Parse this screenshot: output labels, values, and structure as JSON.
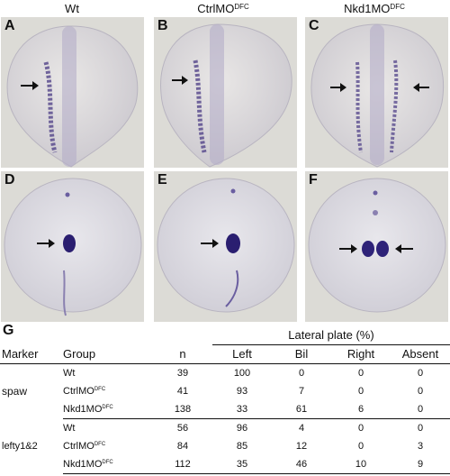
{
  "columns": [
    {
      "main": "Wt",
      "sup": ""
    },
    {
      "main": "CtrlMO",
      "sup": "DFC"
    },
    {
      "main": "Nkd1MO",
      "sup": "DFC"
    }
  ],
  "panel_labels": [
    "A",
    "B",
    "C",
    "D",
    "E",
    "F"
  ],
  "table": {
    "label": "G",
    "header_group": "Lateral plate (%)",
    "headers": {
      "marker": "Marker",
      "group": "Group",
      "n": "n",
      "left": "Left",
      "bil": "Bil",
      "right": "Right",
      "absent": "Absent"
    },
    "markers": [
      "spaw",
      "lefty1&2"
    ],
    "rows": [
      {
        "group": "Wt",
        "sup": "",
        "n": "39",
        "left": "100",
        "bil": "0",
        "right": "0",
        "absent": "0"
      },
      {
        "group": "CtrlMO",
        "sup": "DFC",
        "n": "41",
        "left": "93",
        "bil": "7",
        "right": "0",
        "absent": "0"
      },
      {
        "group": "Nkd1MO",
        "sup": "DFC",
        "n": "138",
        "left": "33",
        "bil": "61",
        "right": "6",
        "absent": "0"
      },
      {
        "group": "Wt",
        "sup": "",
        "n": "56",
        "left": "96",
        "bil": "4",
        "right": "0",
        "absent": "0"
      },
      {
        "group": "CtrlMO",
        "sup": "DFC",
        "n": "84",
        "left": "85",
        "bil": "12",
        "right": "0",
        "absent": "3"
      },
      {
        "group": "Nkd1MO",
        "sup": "DFC",
        "n": "112",
        "left": "35",
        "bil": "46",
        "right": "10",
        "absent": "9"
      }
    ]
  }
}
